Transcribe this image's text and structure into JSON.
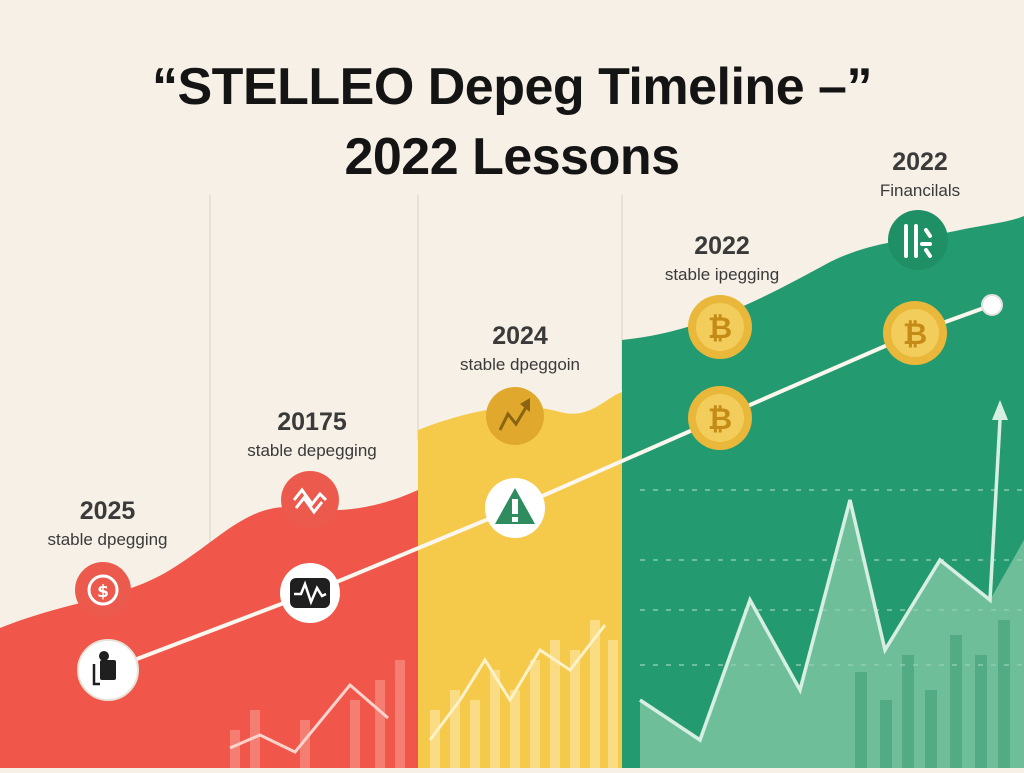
{
  "title": {
    "line1": "“STELLEO Depeg Timeline –”",
    "line2": "2022 Lessons"
  },
  "colors": {
    "background": "#f6f0e6",
    "red": "#f0564a",
    "yellow": "#f5c94a",
    "green": "#249a70",
    "gold": "#e9b73a"
  },
  "stages": [
    {
      "year": "2025",
      "caption": "stable dpegging",
      "icon": "dollar-coin-icon"
    },
    {
      "year": "20175",
      "caption": "stable depegging",
      "icon": "handshake-icon"
    },
    {
      "year": "2024",
      "caption": "stable dpeggoin",
      "icon": "trend-arrow-icon"
    },
    {
      "year": "2022",
      "caption": "stable ipegging",
      "icon": "bitcoin-icon"
    },
    {
      "year": "2022",
      "caption": "Financilals",
      "icon": "brand-logo-icon"
    }
  ],
  "timeline_markers": [
    {
      "icon": "person-chart-icon"
    },
    {
      "icon": "waveform-icon"
    },
    {
      "icon": "warning-icon"
    },
    {
      "icon": "bitcoin-icon"
    },
    {
      "icon": "bitcoin-icon"
    },
    {
      "icon": "end-dot-icon"
    }
  ],
  "coins": [
    {
      "icon": "bitcoin-icon"
    },
    {
      "icon": "bitcoin-icon"
    }
  ]
}
